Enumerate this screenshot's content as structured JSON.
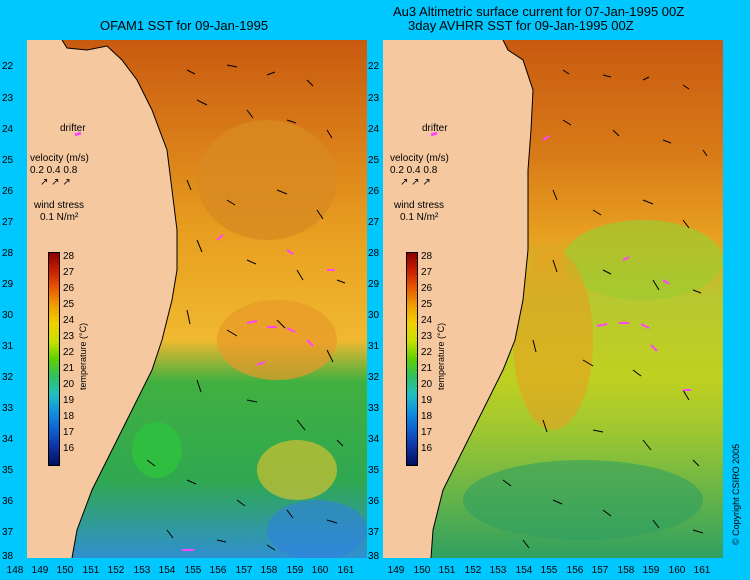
{
  "titles": {
    "left": "OFAM1 SST for 09-Jan-1995",
    "right_line1": "Au3 Altimetric surface current for 07-Jan-1995 00Z",
    "right_line2": "3day AVHRR SST for 09-Jan-1995 00Z"
  },
  "y_ticks": [
    "22",
    "23",
    "24",
    "25",
    "26",
    "27",
    "28",
    "29",
    "30",
    "31",
    "32",
    "33",
    "34",
    "35",
    "36",
    "37",
    "38"
  ],
  "x_ticks_left": [
    "148",
    "149",
    "150",
    "151",
    "152",
    "153",
    "154",
    "155",
    "156",
    "157",
    "158",
    "159",
    "160",
    "161"
  ],
  "x_ticks_right": [
    "149",
    "150",
    "151",
    "152",
    "153",
    "154",
    "155",
    "156",
    "157",
    "158",
    "159",
    "160",
    "161"
  ],
  "legend": {
    "drifter": "drifter",
    "velocity": "velocity (m/s)",
    "velocity_scale": "0.2 0.4 0.8",
    "wind_stress": "wind stress",
    "wind_value": "0.1 N/m²"
  },
  "colorbar": {
    "ticks": [
      "28",
      "27",
      "26",
      "25",
      "24",
      "23",
      "22",
      "21",
      "20",
      "19",
      "18",
      "17",
      "16"
    ],
    "label": "temperature (°C)"
  },
  "copyright": "© Copyright CSIRO 2005",
  "colors": {
    "background": "#00c8ff",
    "land": "#f5c8a0",
    "drifter": "#ff44ff"
  }
}
